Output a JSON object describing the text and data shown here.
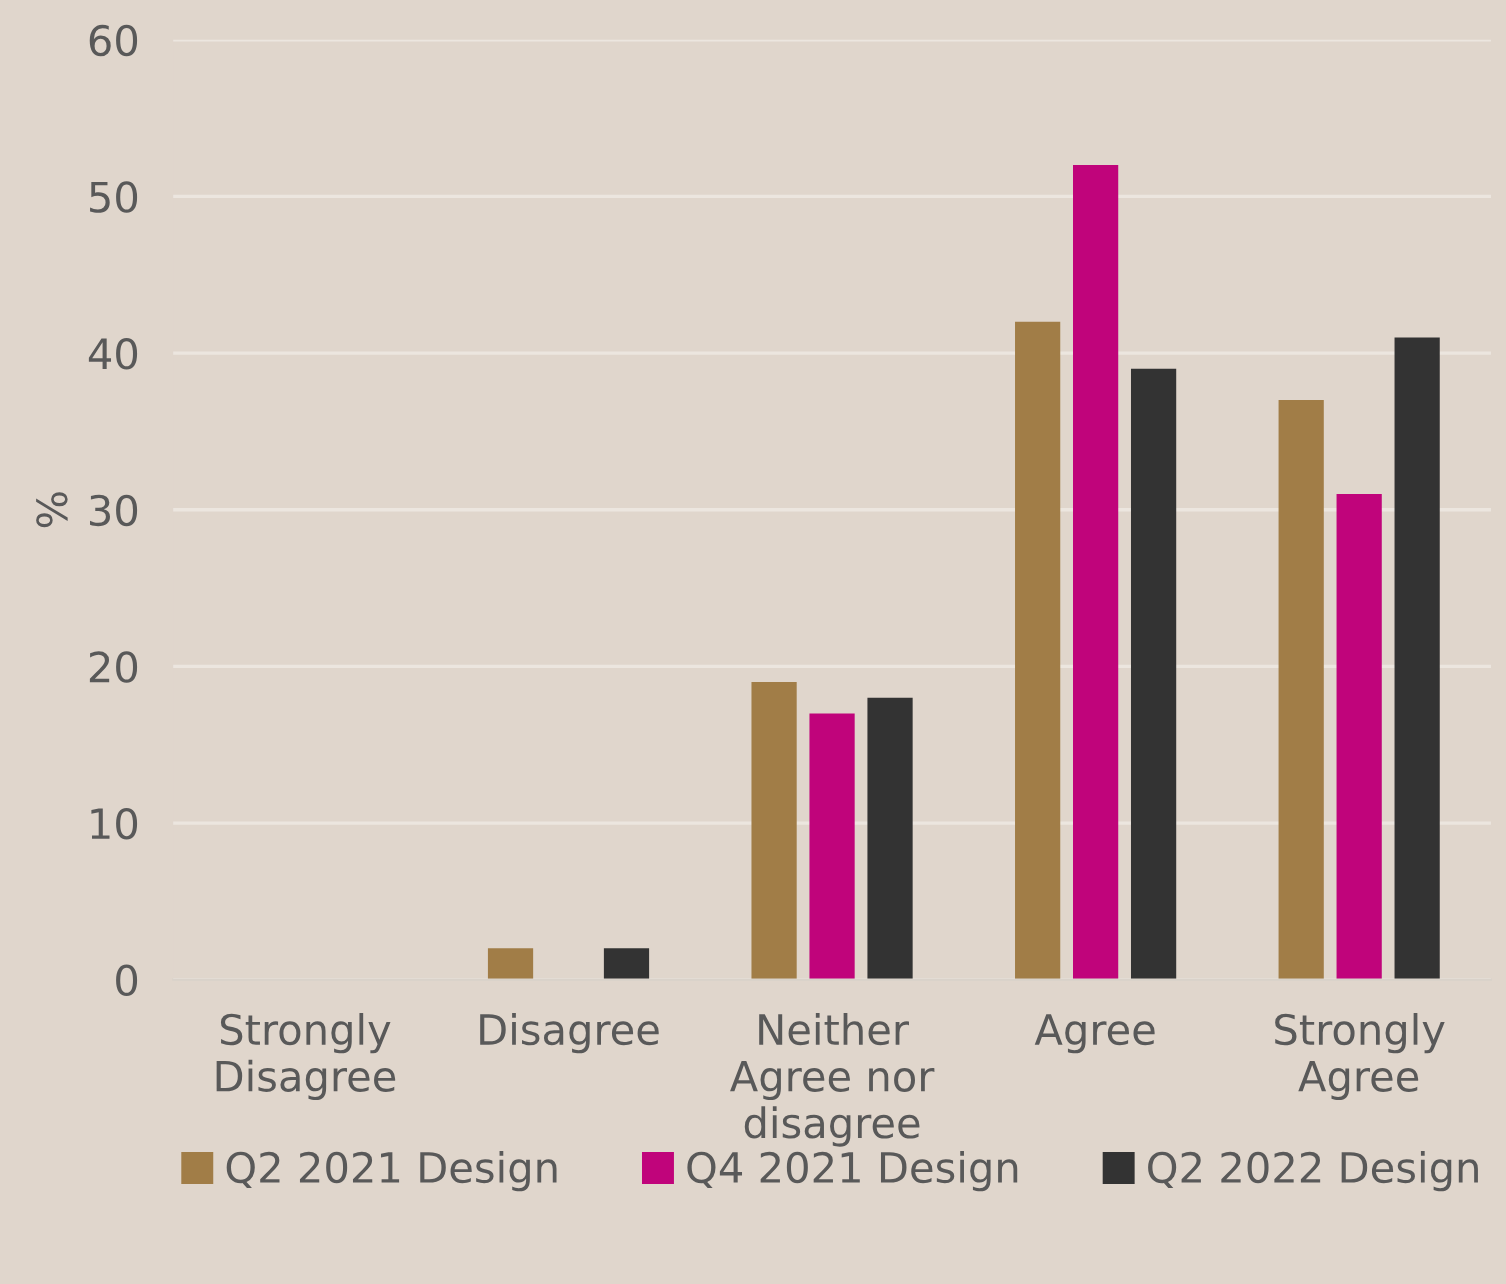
{
  "chart_data": {
    "type": "bar",
    "ylabel": "%",
    "categories": [
      "Strongly\nDisagree",
      "Disagree",
      "Neither\nAgree nor\ndisagree",
      "Agree",
      "Strongly\nAgree"
    ],
    "series": [
      {
        "name": "Q2 2021 Design",
        "color": "#a17d47",
        "values": [
          0,
          2,
          19,
          42,
          37
        ]
      },
      {
        "name": "Q4 2021 Design",
        "color": "#c0047b",
        "values": [
          0,
          0,
          17,
          52,
          31
        ]
      },
      {
        "name": "Q2 2022 Design",
        "color": "#333333",
        "values": [
          0,
          2,
          18,
          39,
          41
        ]
      }
    ],
    "ylim": [
      0,
      60
    ],
    "yticks": [
      0,
      10,
      20,
      30,
      40,
      50,
      60
    ],
    "grid": "y",
    "legend": "bottom"
  }
}
